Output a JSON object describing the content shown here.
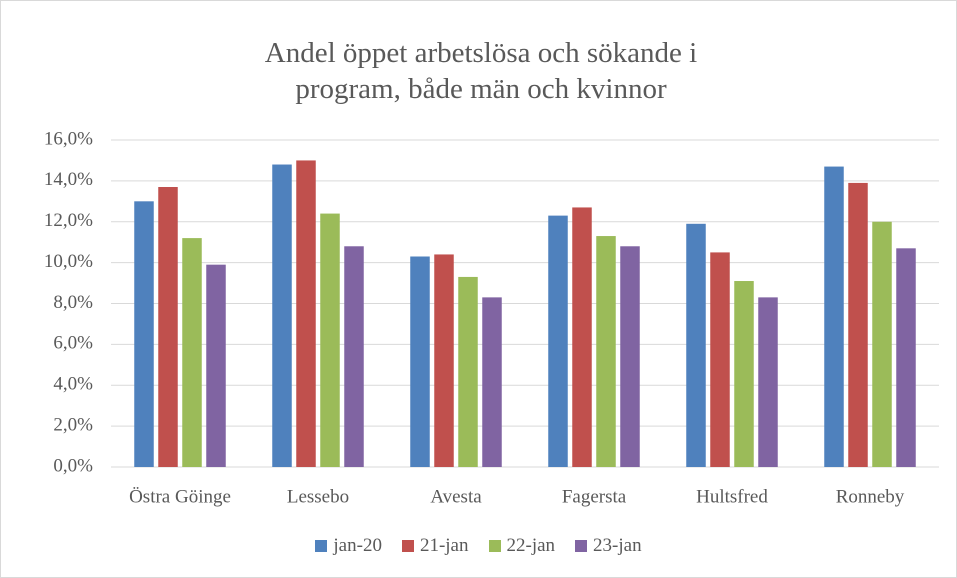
{
  "chart_data": {
    "type": "bar",
    "title": "Andel öppet arbetslösa och sökande i program, både män och kvinnor",
    "categories": [
      "Östra Göinge",
      "Lessebo",
      "Avesta",
      "Fagersta",
      "Hultsfred",
      "Ronneby"
    ],
    "series": [
      {
        "name": "jan-20",
        "color": "#4f81bd",
        "values": [
          13.0,
          14.8,
          10.3,
          12.3,
          11.9,
          14.7
        ]
      },
      {
        "name": "21-jan",
        "color": "#c0504d",
        "values": [
          13.7,
          15.0,
          10.4,
          12.7,
          10.5,
          13.9
        ]
      },
      {
        "name": "22-jan",
        "color": "#9bbb59",
        "values": [
          11.2,
          12.4,
          9.3,
          11.3,
          9.1,
          12.0
        ]
      },
      {
        "name": "23-jan",
        "color": "#8064a2",
        "values": [
          9.9,
          10.8,
          8.3,
          10.8,
          8.3,
          10.7
        ]
      }
    ],
    "ylim": [
      0,
      16
    ],
    "yticks": [
      {
        "value": 0,
        "label": "0,0%"
      },
      {
        "value": 2,
        "label": "2,0%"
      },
      {
        "value": 4,
        "label": "4,0%"
      },
      {
        "value": 6,
        "label": "6,0%"
      },
      {
        "value": 8,
        "label": "8,0%"
      },
      {
        "value": 10,
        "label": "10,0%"
      },
      {
        "value": 12,
        "label": "12,0%"
      },
      {
        "value": 14,
        "label": "14,0%"
      },
      {
        "value": 16,
        "label": "16,0%"
      }
    ],
    "grid": true,
    "legend": "bottom"
  }
}
